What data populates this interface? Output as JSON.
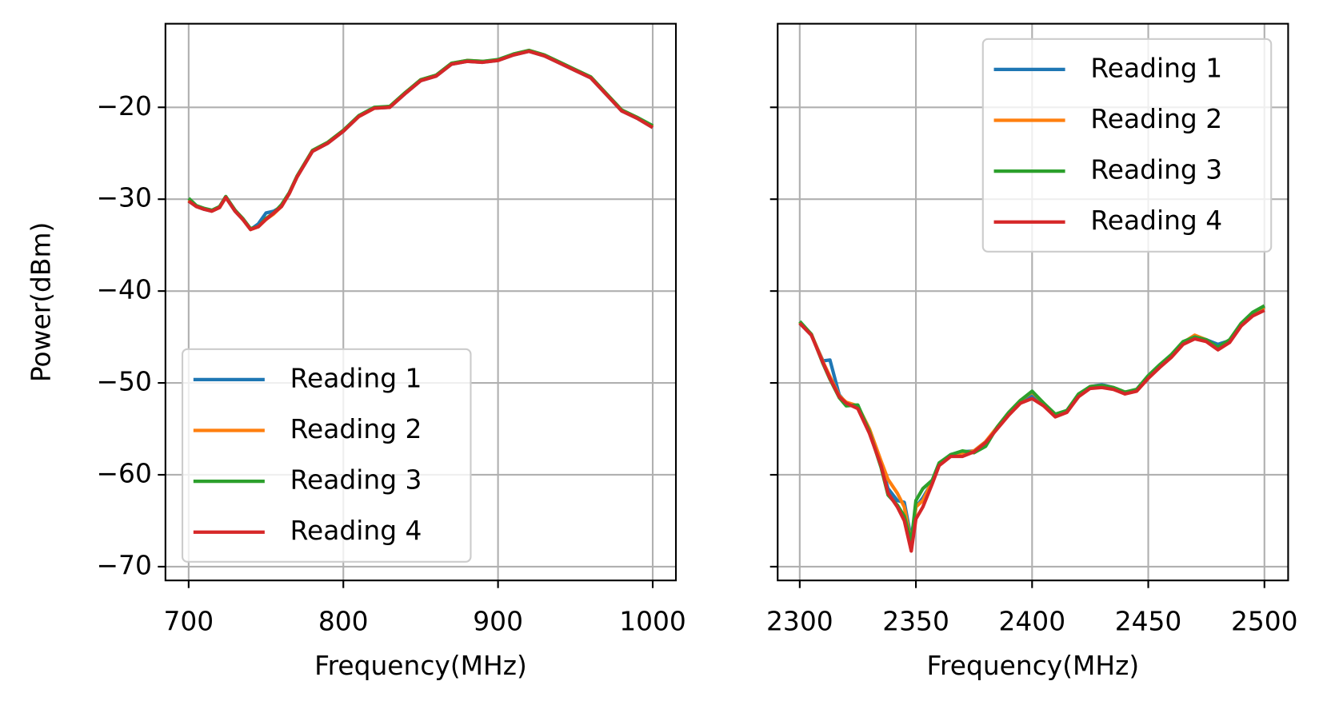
{
  "chart_data": [
    {
      "type": "line",
      "xlabel": "Frequency(MHz)",
      "ylabel": "Power(dBm)",
      "grid": true,
      "legend": "lower left",
      "xlim": [
        685,
        1015
      ],
      "ylim": [
        -71.5,
        -10.9
      ],
      "xticks": [
        700,
        800,
        900,
        1000
      ],
      "yticks": [
        {
          "value": -20,
          "label": "−20"
        },
        {
          "value": -30,
          "label": "−30"
        },
        {
          "value": -40,
          "label": "−40"
        },
        {
          "value": -50,
          "label": "−50"
        },
        {
          "value": -60,
          "label": "−60"
        },
        {
          "value": -70,
          "label": "−70"
        }
      ],
      "x": [
        700,
        705,
        710,
        715,
        720,
        724,
        730,
        735,
        740,
        745,
        750,
        755,
        760,
        765,
        770,
        780,
        790,
        800,
        810,
        820,
        830,
        840,
        850,
        860,
        870,
        880,
        890,
        900,
        910,
        920,
        930,
        940,
        950,
        960,
        970,
        980,
        990,
        1000
      ],
      "series": [
        {
          "name": "Reading 1",
          "color": "#1f77b4",
          "values": [
            -30.2,
            -30.8,
            -31.1,
            -31.3,
            -30.9,
            -29.8,
            -31.3,
            -32.2,
            -33.3,
            -32.7,
            -31.5,
            -31.3,
            -30.8,
            -29.4,
            -27.6,
            -24.8,
            -23.9,
            -22.6,
            -21.0,
            -20.1,
            -20.0,
            -18.5,
            -17.1,
            -16.6,
            -15.3,
            -15.0,
            -15.1,
            -14.9,
            -14.3,
            -13.9,
            -14.4,
            -15.2,
            -16.0,
            -16.8,
            -18.6,
            -20.4,
            -21.2,
            -22.2
          ]
        },
        {
          "name": "Reading 2",
          "color": "#ff7f0e",
          "values": [
            -30.1,
            -30.8,
            -31.0,
            -31.3,
            -30.9,
            -29.8,
            -31.2,
            -32.2,
            -33.3,
            -33.0,
            -32.2,
            -31.6,
            -30.8,
            -29.4,
            -27.6,
            -24.7,
            -23.8,
            -22.5,
            -21.0,
            -20.1,
            -19.9,
            -18.4,
            -17.0,
            -16.5,
            -15.2,
            -14.9,
            -15.0,
            -14.9,
            -14.2,
            -13.8,
            -14.3,
            -15.1,
            -15.9,
            -16.7,
            -18.5,
            -20.3,
            -21.1,
            -22.1
          ]
        },
        {
          "name": "Reading 3",
          "color": "#2ca02c",
          "values": [
            -29.9,
            -30.7,
            -31.0,
            -31.2,
            -30.8,
            -29.7,
            -31.2,
            -32.1,
            -33.2,
            -33.0,
            -32.1,
            -31.5,
            -30.6,
            -29.3,
            -27.5,
            -24.7,
            -23.8,
            -22.5,
            -20.9,
            -20.0,
            -19.9,
            -18.4,
            -17.0,
            -16.5,
            -15.2,
            -14.9,
            -15.0,
            -14.8,
            -14.2,
            -13.8,
            -14.3,
            -15.1,
            -15.9,
            -16.7,
            -18.5,
            -20.3,
            -21.1,
            -22.0
          ]
        },
        {
          "name": "Reading 4",
          "color": "#d62728",
          "values": [
            -30.2,
            -30.8,
            -31.1,
            -31.3,
            -30.9,
            -29.8,
            -31.3,
            -32.2,
            -33.3,
            -33.0,
            -32.2,
            -31.5,
            -30.8,
            -29.4,
            -27.6,
            -24.8,
            -23.9,
            -22.6,
            -21.0,
            -20.1,
            -20.0,
            -18.5,
            -17.1,
            -16.6,
            -15.3,
            -15.0,
            -15.1,
            -14.9,
            -14.3,
            -13.9,
            -14.4,
            -15.2,
            -16.0,
            -16.8,
            -18.6,
            -20.4,
            -21.2,
            -22.2
          ]
        }
      ]
    },
    {
      "type": "line",
      "xlabel": "Frequency(MHz)",
      "grid": true,
      "legend": "upper right",
      "xlim": [
        2290.5,
        2510.2
      ],
      "ylim": [
        -71.5,
        -10.9
      ],
      "xticks": [
        2300,
        2350,
        2400,
        2450,
        2500
      ],
      "yticks": [
        -20,
        -30,
        -40,
        -50,
        -60,
        -70
      ],
      "x": [
        2300,
        2305,
        2310,
        2313,
        2317,
        2320,
        2325,
        2330,
        2335,
        2338,
        2342,
        2345,
        2348,
        2350,
        2353,
        2357,
        2360,
        2365,
        2370,
        2375,
        2380,
        2385,
        2390,
        2395,
        2400,
        2405,
        2410,
        2415,
        2420,
        2425,
        2430,
        2435,
        2440,
        2445,
        2450,
        2455,
        2460,
        2465,
        2470,
        2475,
        2480,
        2485,
        2490,
        2495,
        2500
      ],
      "series": [
        {
          "name": "Reading 1",
          "color": "#1f77b4",
          "values": [
            -43.5,
            -44.8,
            -47.6,
            -47.5,
            -51.3,
            -52.2,
            -52.6,
            -55.4,
            -58.9,
            -61.5,
            -62.8,
            -63.0,
            -67.0,
            -63.5,
            -62.5,
            -60.8,
            -58.8,
            -57.8,
            -57.5,
            -57.4,
            -56.4,
            -54.9,
            -53.3,
            -52.0,
            -51.3,
            -52.3,
            -53.5,
            -53.0,
            -51.3,
            -50.4,
            -50.2,
            -50.5,
            -51.0,
            -50.8,
            -49.3,
            -48.1,
            -47.0,
            -45.6,
            -45.0,
            -45.3,
            -45.8,
            -45.4,
            -43.6,
            -42.4,
            -41.7
          ]
        },
        {
          "name": "Reading 2",
          "color": "#ff7f0e",
          "values": [
            -43.4,
            -44.7,
            -47.7,
            -49.3,
            -51.4,
            -52.1,
            -52.5,
            -55.0,
            -58.5,
            -60.5,
            -62.0,
            -63.5,
            -67.5,
            -63.5,
            -62.8,
            -60.7,
            -58.9,
            -57.9,
            -57.6,
            -57.4,
            -56.4,
            -54.8,
            -53.2,
            -51.9,
            -51.0,
            -52.2,
            -53.5,
            -53.0,
            -51.3,
            -50.4,
            -50.3,
            -50.5,
            -51.0,
            -50.8,
            -49.3,
            -48.1,
            -47.0,
            -45.6,
            -44.8,
            -45.3,
            -46.2,
            -45.4,
            -43.6,
            -42.5,
            -41.8
          ]
        },
        {
          "name": "Reading 3",
          "color": "#2ca02c",
          "values": [
            -43.3,
            -44.7,
            -47.9,
            -49.6,
            -51.6,
            -52.5,
            -52.4,
            -55.3,
            -59.2,
            -62.2,
            -63.3,
            -64.5,
            -67.3,
            -62.8,
            -61.5,
            -60.6,
            -58.7,
            -57.8,
            -57.4,
            -57.6,
            -56.9,
            -54.8,
            -53.2,
            -51.9,
            -50.9,
            -52.2,
            -53.4,
            -53.0,
            -51.2,
            -50.4,
            -50.3,
            -50.5,
            -51.0,
            -50.7,
            -49.2,
            -48.0,
            -46.9,
            -45.5,
            -45.0,
            -45.3,
            -46.1,
            -45.3,
            -43.5,
            -42.3,
            -41.6
          ]
        },
        {
          "name": "Reading 4",
          "color": "#d62728",
          "values": [
            -43.5,
            -44.8,
            -47.8,
            -49.5,
            -51.5,
            -52.2,
            -52.8,
            -55.5,
            -59.0,
            -62.0,
            -63.5,
            -65.0,
            -68.3,
            -64.8,
            -63.5,
            -61.0,
            -59.0,
            -58.0,
            -58.0,
            -57.5,
            -56.5,
            -55.0,
            -53.5,
            -52.2,
            -51.7,
            -52.5,
            -53.7,
            -53.2,
            -51.5,
            -50.6,
            -50.5,
            -50.7,
            -51.2,
            -50.9,
            -49.5,
            -48.3,
            -47.2,
            -45.8,
            -45.2,
            -45.5,
            -46.4,
            -45.6,
            -43.8,
            -42.7,
            -42.1
          ]
        }
      ]
    }
  ]
}
